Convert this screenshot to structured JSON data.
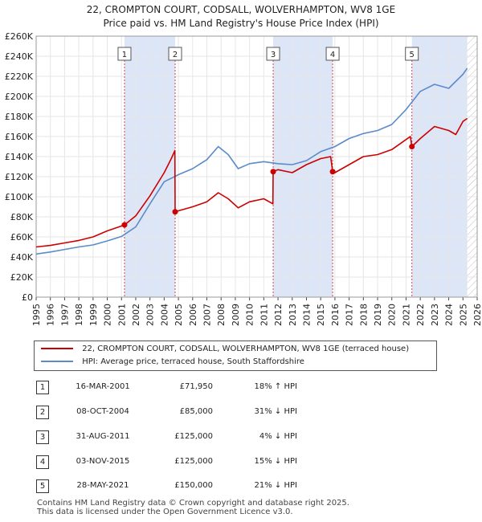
{
  "title_line1": "22, CROMPTON COURT, CODSALL, WOLVERHAMPTON, WV8 1GE",
  "title_line2": "Price paid vs. HM Land Registry's House Price Index (HPI)",
  "colors": {
    "price_line": "#cc0000",
    "hpi_line": "#5b8bc8",
    "shade": "#dde6f7",
    "marker": "#cc0000"
  },
  "chart_data": {
    "type": "line",
    "xlim": [
      1995,
      2026
    ],
    "ylim": [
      0,
      260000
    ],
    "y_ticks": [
      0,
      20000,
      40000,
      60000,
      80000,
      100000,
      120000,
      140000,
      160000,
      180000,
      200000,
      220000,
      240000,
      260000
    ],
    "y_tick_labels": [
      "£0",
      "£20K",
      "£40K",
      "£60K",
      "£80K",
      "£100K",
      "£120K",
      "£140K",
      "£160K",
      "£180K",
      "£200K",
      "£220K",
      "£240K",
      "£260K"
    ],
    "x_ticks": [
      1995,
      1996,
      1997,
      1998,
      1999,
      2000,
      2001,
      2002,
      2003,
      2004,
      2005,
      2006,
      2007,
      2008,
      2009,
      2010,
      2011,
      2012,
      2013,
      2014,
      2015,
      2016,
      2017,
      2018,
      2019,
      2020,
      2021,
      2022,
      2023,
      2024,
      2025,
      2026
    ],
    "shaded_ranges": [
      [
        2001.21,
        2004.77
      ],
      [
        2011.66,
        2015.84
      ],
      [
        2021.41,
        2025.3
      ]
    ],
    "future_hatch_from": 2025.3,
    "series": [
      {
        "name": "22, CROMPTON COURT, CODSALL, WOLVERHAMPTON, WV8 1GE (terraced house)",
        "x": [
          1995,
          1996,
          1997,
          1998,
          1999,
          2000,
          2001.21,
          2002,
          2003,
          2004,
          2004.5,
          2004.75,
          2004.77,
          2005,
          2006,
          2007,
          2007.8,
          2008.5,
          2009.2,
          2010,
          2011,
          2011.64,
          2011.66,
          2012,
          2013,
          2014,
          2015,
          2015.7,
          2015.84,
          2016,
          2017,
          2018,
          2019,
          2020,
          2021.3,
          2021.41,
          2022,
          2023,
          2024,
          2024.5,
          2025,
          2025.3
        ],
        "values": [
          50000,
          51500,
          54000,
          56500,
          60000,
          66000,
          71950,
          81000,
          101000,
          124000,
          138000,
          146000,
          85000,
          86000,
          90000,
          95000,
          104000,
          98000,
          89000,
          95000,
          98000,
          93000,
          125000,
          127000,
          124000,
          132000,
          138000,
          140000,
          125000,
          124000,
          132000,
          140000,
          142000,
          147000,
          160000,
          150000,
          158000,
          170000,
          166000,
          162000,
          175000,
          178000
        ]
      },
      {
        "name": "HPI: Average price, terraced house, South Staffordshire",
        "x": [
          1995,
          1996,
          1997,
          1998,
          1999,
          2000,
          2001,
          2002,
          2003,
          2004,
          2005,
          2006,
          2007,
          2007.8,
          2008.5,
          2009.2,
          2010,
          2011,
          2012,
          2013,
          2014,
          2015,
          2016,
          2017,
          2018,
          2019,
          2020,
          2021,
          2022,
          2023,
          2024,
          2025,
          2025.3
        ],
        "values": [
          43000,
          45000,
          47500,
          50000,
          52000,
          56000,
          60500,
          70000,
          93000,
          115000,
          122000,
          128000,
          137000,
          150000,
          142000,
          128000,
          133000,
          135000,
          133000,
          132000,
          136000,
          145000,
          150000,
          158000,
          163000,
          166000,
          172000,
          187000,
          205000,
          212000,
          208000,
          222000,
          228000
        ]
      }
    ],
    "markers": [
      {
        "label": "1",
        "x": 2001.21,
        "y": 71950
      },
      {
        "label": "2",
        "x": 2004.77,
        "y": 85000
      },
      {
        "label": "3",
        "x": 2011.66,
        "y": 125000
      },
      {
        "label": "4",
        "x": 2015.84,
        "y": 125000
      },
      {
        "label": "5",
        "x": 2021.41,
        "y": 150000
      }
    ]
  },
  "legend": {
    "price_label": "22, CROMPTON COURT, CODSALL, WOLVERHAMPTON, WV8 1GE (terraced house)",
    "hpi_label": "HPI: Average price, terraced house, South Staffordshire"
  },
  "transactions": [
    {
      "num": "1",
      "date": "16-MAR-2001",
      "price": "£71,950",
      "hpi": "18% ↑ HPI"
    },
    {
      "num": "2",
      "date": "08-OCT-2004",
      "price": "£85,000",
      "hpi": "31% ↓ HPI"
    },
    {
      "num": "3",
      "date": "31-AUG-2011",
      "price": "£125,000",
      "hpi": "4% ↓ HPI"
    },
    {
      "num": "4",
      "date": "03-NOV-2015",
      "price": "£125,000",
      "hpi": "15% ↓ HPI"
    },
    {
      "num": "5",
      "date": "28-MAY-2021",
      "price": "£150,000",
      "hpi": "21% ↓ HPI"
    }
  ],
  "footer": {
    "line1": "Contains HM Land Registry data © Crown copyright and database right 2025.",
    "line2": "This data is licensed under the Open Government Licence v3.0."
  }
}
